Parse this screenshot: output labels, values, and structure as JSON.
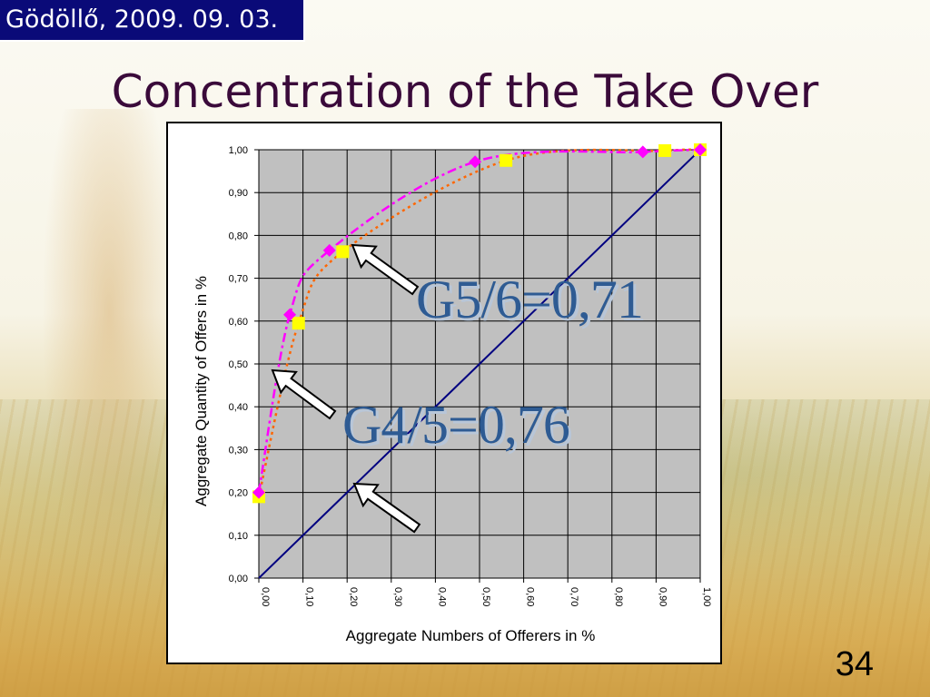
{
  "header": {
    "date": "Gödöllő, 2009. 09. 03."
  },
  "slide": {
    "title": "Concentration of the Take Over",
    "page_number": "34"
  },
  "annotations": {
    "g56": "G5/6=0,71",
    "g45": "G4/5=0,76"
  },
  "colors": {
    "plot_bg": "#c0c0c0",
    "equality_line": "#000080",
    "series_g56": "#ff00ff",
    "series_g45": "#ff6600",
    "marker_g45": "#ffff00",
    "annotation_text": "#2e5b93"
  },
  "chart_data": {
    "type": "line",
    "xlabel": "Aggregate Numbers of Offerers in %",
    "ylabel": "Aggregate Quantity of Offers in %",
    "xlim": [
      0,
      1
    ],
    "ylim": [
      0,
      1
    ],
    "grid": true,
    "x_tick_labels": [
      "0,00",
      "0,10",
      "0,20",
      "0,30",
      "0,40",
      "0,50",
      "0,60",
      "0,70",
      "0,80",
      "0,90",
      "1,00"
    ],
    "y_tick_labels": [
      "0,00",
      "0,10",
      "0,20",
      "0,30",
      "0,40",
      "0,50",
      "0,60",
      "0,70",
      "0,80",
      "0,90",
      "1,00"
    ],
    "series": [
      {
        "marker": "diamond",
        "x": [
          0.0,
          0.07,
          0.16,
          0.49,
          0.87,
          1.0
        ],
        "y": [
          0.2,
          0.615,
          0.765,
          0.972,
          0.995,
          1.0
        ]
      },
      {
        "marker": "square",
        "x": [
          0.0,
          0.09,
          0.19,
          0.56,
          0.92,
          1.0
        ],
        "y": [
          0.19,
          0.595,
          0.762,
          0.975,
          0.998,
          1.0
        ]
      },
      {
        "marker": "none",
        "x": [
          0,
          1
        ],
        "y": [
          0,
          1
        ]
      }
    ]
  }
}
